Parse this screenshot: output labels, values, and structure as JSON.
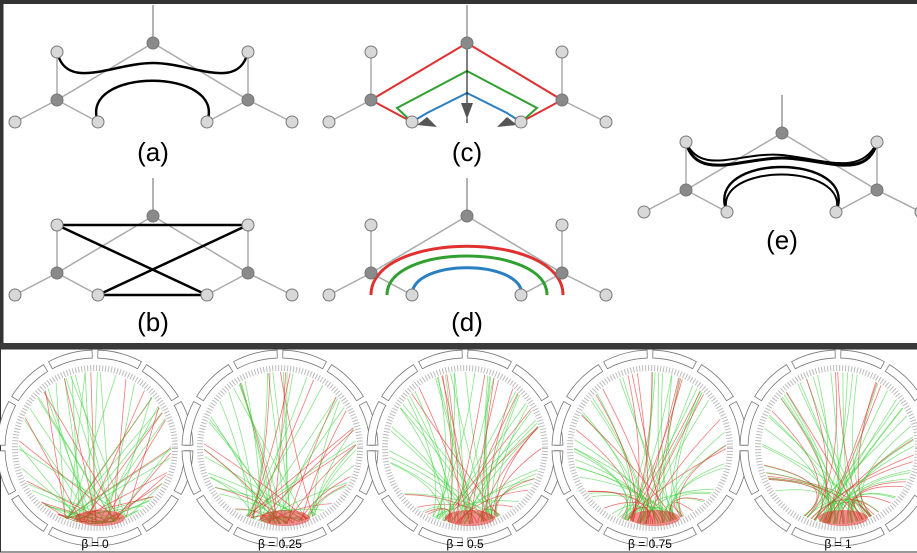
{
  "panels": [
    {
      "label": "(a)"
    },
    {
      "label": "(b)"
    },
    {
      "label": "(c)"
    },
    {
      "label": "(d)"
    },
    {
      "label": "(e)"
    }
  ],
  "bundles": [
    {
      "label": "β = 0"
    },
    {
      "label": "β = 0.25"
    },
    {
      "label": "β = 0.5"
    },
    {
      "label": "β = 0.75"
    },
    {
      "label": "β = 1"
    }
  ]
}
